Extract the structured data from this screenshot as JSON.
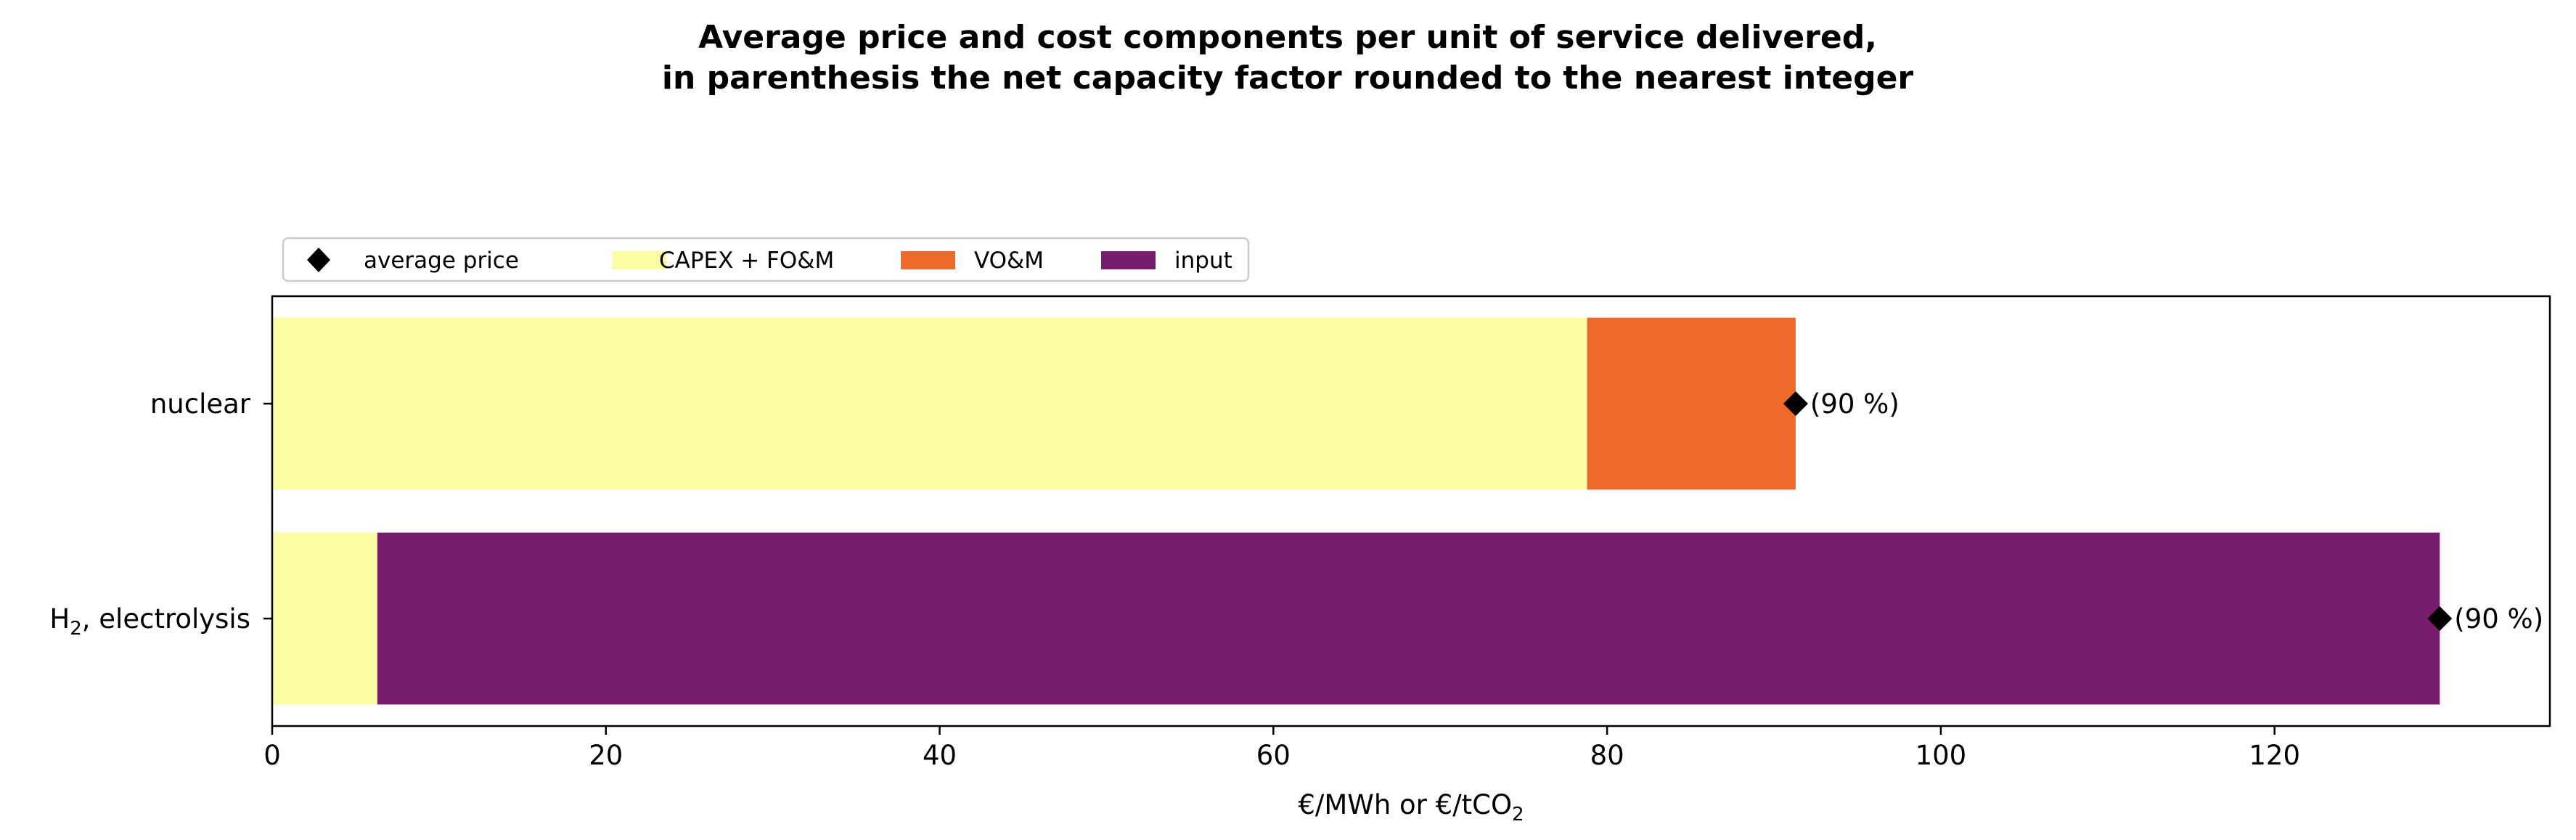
{
  "chart_data": {
    "type": "bar",
    "orientation": "horizontal",
    "stacked": true,
    "title": "Average price and cost components per unit of service delivered,",
    "subtitle": "in parenthesis the net capacity factor rounded to the nearest integer",
    "xlabel": "€/MWh or €/tCO",
    "xlabel_subscript": "2",
    "ylabel": "",
    "xlim": [
      0,
      136.5
    ],
    "xticks": [
      0,
      20,
      40,
      60,
      80,
      100,
      120
    ],
    "grid": false,
    "legend_position": "top-left",
    "categories": [
      {
        "label": "nuclear",
        "subscript": "",
        "suffix": ""
      },
      {
        "label": "H",
        "subscript": "2",
        "suffix": ", electrolysis"
      }
    ],
    "series": [
      {
        "name": "CAPEX + FO&M",
        "color": "#fcfea4",
        "values": [
          78.8,
          6.3
        ]
      },
      {
        "name": "VO&M",
        "color": "#ee6a2a",
        "values": [
          12.5,
          0
        ]
      },
      {
        "name": "input",
        "color": "#781c6d",
        "values": [
          0,
          123.6
        ]
      }
    ],
    "average_price": {
      "name": "average price",
      "marker": "diamond",
      "color": "#000000",
      "values": [
        91.3,
        129.9
      ]
    },
    "annotations": [
      "(90 %)",
      "(90 %)"
    ]
  }
}
